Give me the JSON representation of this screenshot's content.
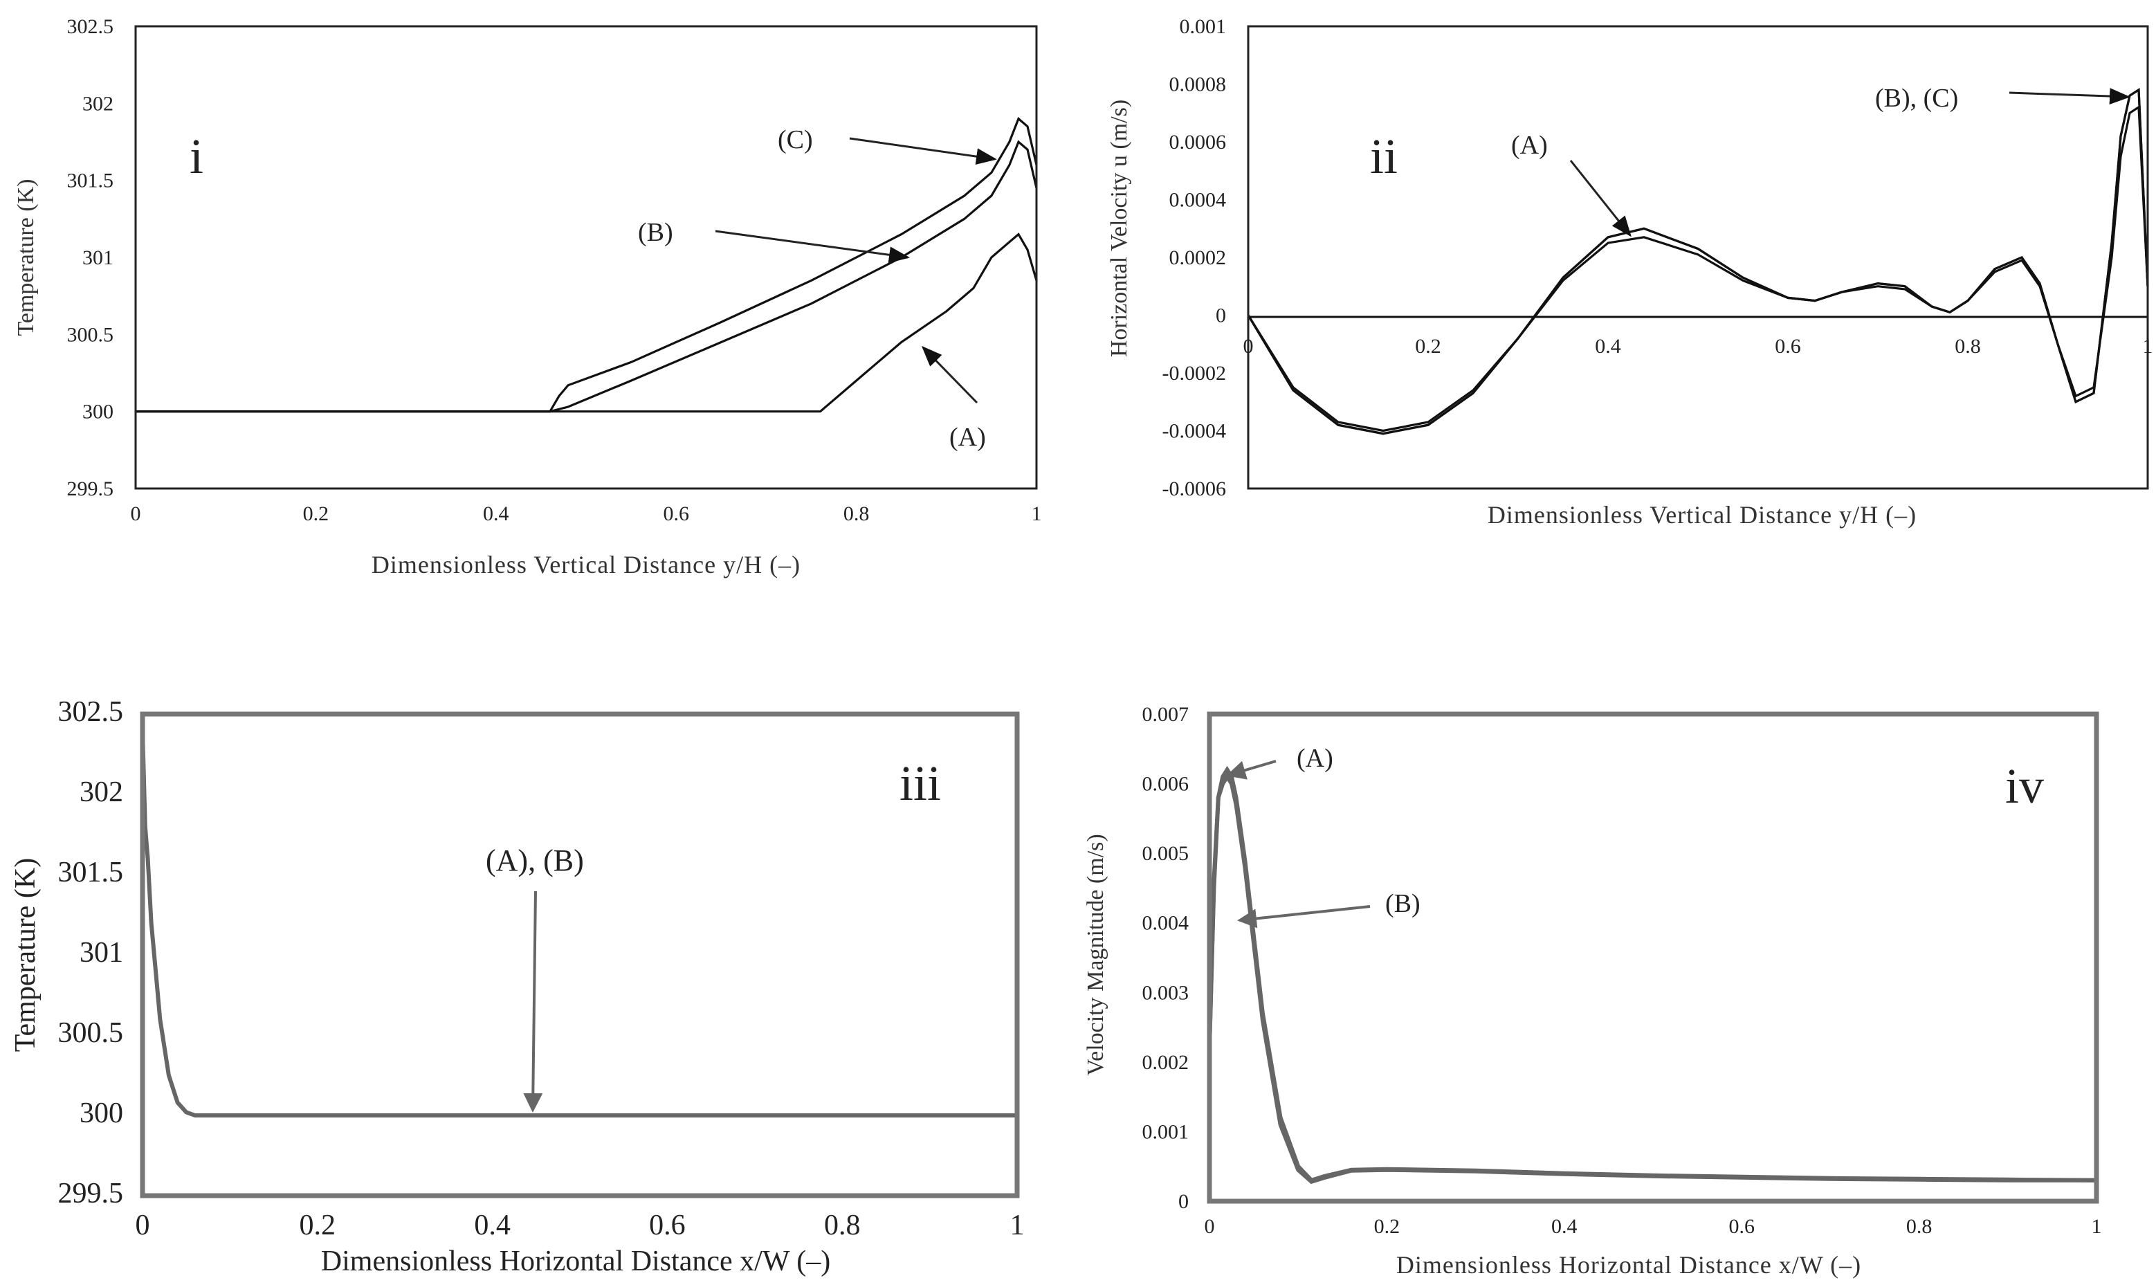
{
  "chart_data": [
    {
      "id": "i",
      "type": "line",
      "panel_label": "i",
      "xlabel": "Dimensionless Vertical Distance y/H (–)",
      "ylabel": "Temperature (K)",
      "xlim": [
        0,
        1
      ],
      "ylim": [
        299.5,
        302.5
      ],
      "x_ticks": [
        0,
        0.2,
        0.4,
        0.6,
        0.8,
        1
      ],
      "x_tick_labels": [
        "0",
        "0.2",
        "0.4",
        "0.6",
        "0.8",
        "1"
      ],
      "y_ticks": [
        299.5,
        300,
        300.5,
        301,
        301.5,
        302,
        302.5
      ],
      "y_tick_labels": [
        "299.5",
        "300",
        "300.5",
        "301",
        "301.5",
        "302",
        "302.5"
      ],
      "series": [
        {
          "name": "A",
          "x": [
            0,
            0.76,
            0.8,
            0.85,
            0.9,
            0.93,
            0.95,
            0.97,
            0.98,
            0.99,
            1.0
          ],
          "y": [
            300,
            300,
            300.2,
            300.45,
            300.65,
            300.8,
            301.0,
            301.1,
            301.15,
            301.05,
            300.85
          ]
        },
        {
          "name": "B",
          "x": [
            0,
            0.46,
            0.48,
            0.55,
            0.65,
            0.75,
            0.85,
            0.92,
            0.95,
            0.97,
            0.98,
            0.99,
            1.0
          ],
          "y": [
            300,
            300,
            300.03,
            300.2,
            300.45,
            300.7,
            301.0,
            301.25,
            301.4,
            301.6,
            301.75,
            301.7,
            301.45
          ]
        },
        {
          "name": "C",
          "x": [
            0,
            0.46,
            0.47,
            0.48,
            0.55,
            0.65,
            0.75,
            0.85,
            0.92,
            0.95,
            0.97,
            0.98,
            0.99,
            1.0
          ],
          "y": [
            300,
            300,
            300.1,
            300.17,
            300.32,
            300.58,
            300.85,
            301.15,
            301.4,
            301.55,
            301.75,
            301.9,
            301.85,
            301.6
          ]
        }
      ],
      "annotations": [
        {
          "text": "(C)",
          "target_x": 0.955,
          "target_y": 301.58
        },
        {
          "text": "(B)",
          "target_x": 0.86,
          "target_y": 301.03
        },
        {
          "text": "(A)",
          "target_x": 0.875,
          "target_y": 300.55
        }
      ]
    },
    {
      "id": "ii",
      "type": "line",
      "panel_label": "ii",
      "xlabel": "Dimensionless Vertical Distance y/H (–)",
      "ylabel": "Horizontal Velocity u (m/s)",
      "xlim": [
        0,
        1
      ],
      "ylim": [
        -0.0006,
        0.001
      ],
      "x_ticks": [
        0,
        0.2,
        0.4,
        0.6,
        0.8,
        1
      ],
      "x_tick_labels": [
        "0",
        "0.2",
        "0.4",
        "0.6",
        "0.8",
        "1"
      ],
      "y_ticks": [
        -0.0006,
        -0.0004,
        -0.0002,
        0,
        0.0002,
        0.0004,
        0.0006,
        0.0008,
        0.001
      ],
      "y_tick_labels": [
        "-0.0006",
        "-0.0004",
        "-0.0002",
        "0",
        "0.0002",
        "0.0004",
        "0.0006",
        "0.0008",
        "0.001"
      ],
      "series": [
        {
          "name": "A",
          "x": [
            0,
            0.05,
            0.1,
            0.15,
            0.2,
            0.25,
            0.3,
            0.35,
            0.4,
            0.44,
            0.5,
            0.55,
            0.6,
            0.63,
            0.66,
            0.7,
            0.73,
            0.76,
            0.78,
            0.8,
            0.83,
            0.86,
            0.88,
            0.9,
            0.92,
            0.94,
            0.96,
            0.97,
            0.98,
            0.99,
            1.0
          ],
          "y": [
            0,
            -0.00025,
            -0.00037,
            -0.0004,
            -0.00037,
            -0.00026,
            -8e-05,
            0.00012,
            0.00025,
            0.00027,
            0.00021,
            0.00012,
            6e-05,
            5e-05,
            8e-05,
            0.0001,
            9e-05,
            3e-05,
            1e-05,
            5e-05,
            0.00015,
            0.00019,
            0.0001,
            -0.0001,
            -0.00028,
            -0.00025,
            0.0002,
            0.00055,
            0.0007,
            0.00072,
            0.0001
          ]
        },
        {
          "name": "B",
          "x": [
            0,
            0.05,
            0.1,
            0.15,
            0.2,
            0.25,
            0.3,
            0.35,
            0.4,
            0.44,
            0.5,
            0.55,
            0.6,
            0.63,
            0.66,
            0.7,
            0.73,
            0.76,
            0.78,
            0.8,
            0.83,
            0.86,
            0.88,
            0.9,
            0.92,
            0.94,
            0.96,
            0.97,
            0.98,
            0.99,
            1.0
          ],
          "y": [
            0,
            -0.00026,
            -0.00038,
            -0.00041,
            -0.00038,
            -0.00027,
            -8e-05,
            0.00013,
            0.00027,
            0.0003,
            0.00023,
            0.00013,
            6e-05,
            5e-05,
            8e-05,
            0.00011,
            0.0001,
            3e-05,
            1e-05,
            5e-05,
            0.00016,
            0.0002,
            0.00011,
            -0.0001,
            -0.0003,
            -0.00027,
            0.00025,
            0.00062,
            0.00076,
            0.00078,
            0.0001
          ]
        },
        {
          "name": "C",
          "x": [
            0,
            0.05,
            0.1,
            0.15,
            0.2,
            0.25,
            0.3,
            0.35,
            0.4,
            0.44,
            0.5,
            0.55,
            0.6,
            0.63,
            0.66,
            0.7,
            0.73,
            0.76,
            0.78,
            0.8,
            0.83,
            0.86,
            0.88,
            0.9,
            0.92,
            0.94,
            0.96,
            0.97,
            0.98,
            0.99,
            1.0
          ],
          "y": [
            0,
            -0.00026,
            -0.00038,
            -0.00041,
            -0.00038,
            -0.00027,
            -8e-05,
            0.00013,
            0.00027,
            0.0003,
            0.00023,
            0.00013,
            6e-05,
            5e-05,
            8e-05,
            0.00011,
            0.0001,
            3e-05,
            1e-05,
            5e-05,
            0.00016,
            0.0002,
            0.00011,
            -0.0001,
            -0.0003,
            -0.00027,
            0.00025,
            0.00062,
            0.00076,
            0.00078,
            0.0001
          ]
        }
      ],
      "annotations": [
        {
          "text": "(A)",
          "target_x": 0.42,
          "target_y": 0.00029
        },
        {
          "text": "(B), (C)",
          "target_x": 0.985,
          "target_y": 0.00076
        }
      ]
    },
    {
      "id": "iii",
      "type": "line",
      "panel_label": "iii",
      "xlabel": "Dimensionless Horizontal Distance x/W (–)",
      "ylabel": "Temperature (K)",
      "xlim": [
        0,
        1
      ],
      "ylim": [
        299.5,
        302.5
      ],
      "x_ticks": [
        0,
        0.2,
        0.4,
        0.6,
        0.8,
        1
      ],
      "x_tick_labels": [
        "0",
        "0.2",
        "0.4",
        "0.6",
        "0.8",
        "1"
      ],
      "y_ticks": [
        299.5,
        300,
        300.5,
        301,
        301.5,
        302,
        302.5
      ],
      "y_tick_labels": [
        "299.5",
        "300",
        "300.5",
        "301",
        "301.5",
        "302",
        "302.5"
      ],
      "series": [
        {
          "name": "A, B",
          "x": [
            0,
            0.003,
            0.006,
            0.01,
            0.015,
            0.02,
            0.03,
            0.04,
            0.05,
            0.06,
            0.08,
            1.0
          ],
          "y": [
            302.4,
            301.8,
            301.6,
            301.2,
            300.9,
            300.6,
            300.25,
            300.08,
            300.02,
            300.0,
            300.0,
            300.0
          ]
        }
      ],
      "annotations": [
        {
          "text": "(A), (B)",
          "target_x": 0.445,
          "target_y": 300.0
        }
      ]
    },
    {
      "id": "iv",
      "type": "line",
      "panel_label": "iv",
      "xlabel": "Dimensionless Horizontal Distance x/W (–)",
      "ylabel": "Velocity Magnitude (m/s)",
      "xlim": [
        0,
        1
      ],
      "ylim": [
        0,
        0.007
      ],
      "x_ticks": [
        0,
        0.2,
        0.4,
        0.6,
        0.8,
        1
      ],
      "x_tick_labels": [
        "0",
        "0.2",
        "0.4",
        "0.6",
        "0.8",
        "1"
      ],
      "y_ticks": [
        0,
        0.001,
        0.002,
        0.003,
        0.004,
        0.005,
        0.006,
        0.007
      ],
      "y_tick_labels": [
        "0",
        "0.001",
        "0.002",
        "0.003",
        "0.004",
        "0.005",
        "0.006",
        "0.007"
      ],
      "series": [
        {
          "name": "A",
          "x": [
            0,
            0.005,
            0.01,
            0.015,
            0.02,
            0.025,
            0.03,
            0.04,
            0.05,
            0.06,
            0.08,
            0.1,
            0.115,
            0.13,
            0.16,
            0.2,
            0.3,
            0.4,
            0.5,
            0.6,
            0.7,
            0.8,
            0.9,
            1.0
          ],
          "y": [
            0.0022,
            0.0045,
            0.0058,
            0.0061,
            0.0062,
            0.0061,
            0.0058,
            0.0049,
            0.0038,
            0.0027,
            0.0012,
            0.0005,
            0.0003,
            0.00036,
            0.00045,
            0.00046,
            0.00044,
            0.0004,
            0.00037,
            0.00035,
            0.00033,
            0.00032,
            0.00031,
            0.0003
          ]
        },
        {
          "name": "B",
          "x": [
            0,
            0.005,
            0.01,
            0.015,
            0.02,
            0.025,
            0.03,
            0.04,
            0.05,
            0.06,
            0.08,
            0.1,
            0.115,
            0.13,
            0.16,
            0.2,
            0.3,
            0.4,
            0.5,
            0.6,
            0.7,
            0.8,
            0.9,
            1.0
          ],
          "y": [
            0.0022,
            0.0046,
            0.0058,
            0.006,
            0.0061,
            0.006,
            0.0057,
            0.0048,
            0.0037,
            0.0026,
            0.0011,
            0.00045,
            0.00028,
            0.00034,
            0.00044,
            0.00045,
            0.00043,
            0.00039,
            0.00036,
            0.00034,
            0.00032,
            0.00031,
            0.0003,
            0.0003
          ]
        }
      ],
      "annotations": [
        {
          "text": "(A)",
          "target_x": 0.025,
          "target_y": 0.0061
        },
        {
          "text": "(B)",
          "target_x": 0.035,
          "target_y": 0.004
        }
      ]
    }
  ]
}
